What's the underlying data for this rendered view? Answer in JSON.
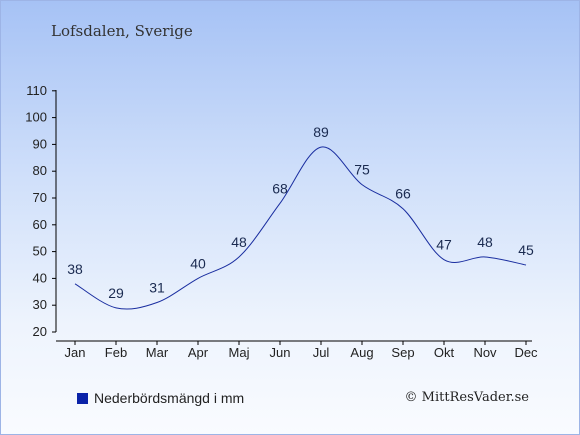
{
  "location_title": "Lofsdalen, Sverige",
  "credit": "© MittResVader.se",
  "colors": {
    "series": "#1a2ea0",
    "axis": "#000000",
    "legend_swatch": "#0a22a8",
    "label": "#1a2a50"
  },
  "chart_data": {
    "type": "line",
    "title": "Lofsdalen, Sverige",
    "xlabel": "",
    "ylabel": "",
    "categories": [
      "Jan",
      "Feb",
      "Mar",
      "Apr",
      "Maj",
      "Jun",
      "Jul",
      "Aug",
      "Sep",
      "Okt",
      "Nov",
      "Dec"
    ],
    "series": [
      {
        "name": "Nederbördsmängd i mm",
        "values": [
          38,
          29,
          31,
          40,
          48,
          68,
          89,
          75,
          66,
          47,
          48,
          45
        ]
      }
    ],
    "ylim": [
      20,
      110
    ],
    "yticks": [
      20,
      30,
      40,
      50,
      60,
      70,
      80,
      90,
      100,
      110
    ],
    "grid": false,
    "legend_position": "bottom-left",
    "data_labels": true
  }
}
